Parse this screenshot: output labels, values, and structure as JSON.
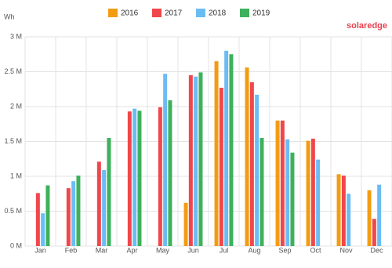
{
  "chart_data": {
    "type": "bar",
    "y_label": "Wh",
    "logo": "solaredge",
    "categories": [
      "Jan",
      "Feb",
      "Mar",
      "Apr",
      "May",
      "Jun",
      "Jul",
      "Aug",
      "Sep",
      "Oct",
      "Nov",
      "Dec"
    ],
    "series": [
      {
        "name": "2016",
        "color": "#f39c12",
        "values": [
          null,
          null,
          null,
          null,
          null,
          620000,
          2650000,
          2560000,
          1800000,
          1510000,
          1030000,
          800000
        ]
      },
      {
        "name": "2017",
        "color": "#f0474c",
        "values": [
          760000,
          830000,
          1210000,
          1930000,
          1990000,
          2450000,
          2270000,
          2350000,
          1800000,
          1540000,
          1010000,
          390000
        ]
      },
      {
        "name": "2018",
        "color": "#6cbcf4",
        "values": [
          470000,
          930000,
          1090000,
          1970000,
          2470000,
          2430000,
          2800000,
          2170000,
          1530000,
          1240000,
          750000,
          880000
        ]
      },
      {
        "name": "2019",
        "color": "#3db15c",
        "values": [
          870000,
          1010000,
          1550000,
          1940000,
          2090000,
          2490000,
          2750000,
          1550000,
          1340000,
          null,
          null,
          null
        ]
      }
    ],
    "ylim": [
      0,
      3000000
    ],
    "yticks": [
      {
        "value": 0,
        "label": "0 M"
      },
      {
        "value": 500000,
        "label": "0.5 M"
      },
      {
        "value": 1000000,
        "label": "1 M"
      },
      {
        "value": 1500000,
        "label": "1.5 M"
      },
      {
        "value": 2000000,
        "label": "2 M"
      },
      {
        "value": 2500000,
        "label": "2.5 M"
      },
      {
        "value": 3000000,
        "label": "3 M"
      }
    ],
    "grid": true
  }
}
